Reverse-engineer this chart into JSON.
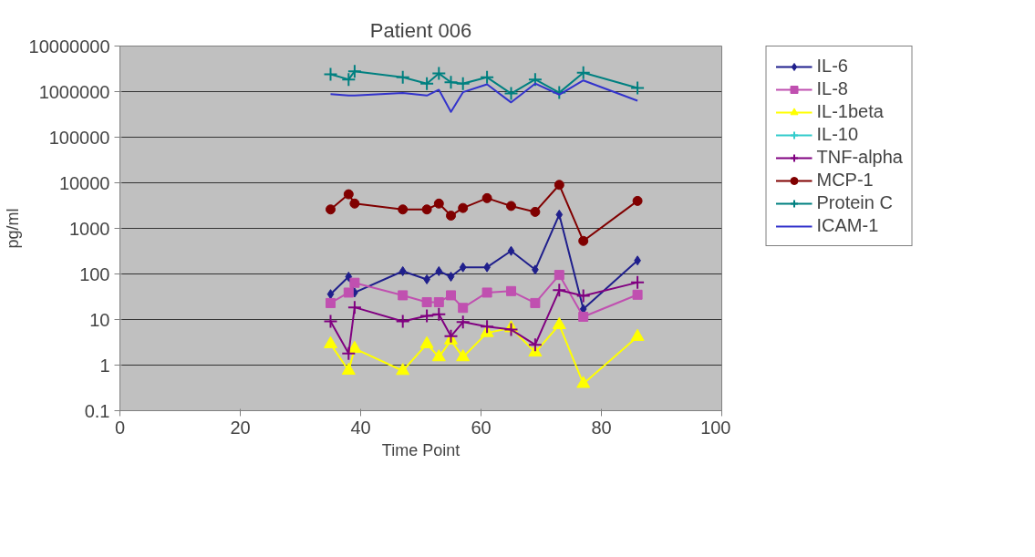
{
  "chart_data": {
    "type": "line",
    "title": "Patient 006",
    "xlabel": "Time Point",
    "ylabel": "pg/ml",
    "x": [
      35,
      38,
      39,
      47,
      51,
      53,
      55,
      57,
      61,
      65,
      69,
      73,
      77,
      86
    ],
    "series": [
      {
        "name": "IL-6",
        "color": "#1f1f8c",
        "marker": "diamond",
        "values": [
          36,
          87,
          39,
          115,
          76,
          115,
          87,
          140,
          140,
          320,
          124,
          2000,
          17,
          197
        ]
      },
      {
        "name": "IL-8",
        "color": "#c050b0",
        "marker": "square",
        "values": [
          23,
          39,
          64,
          34,
          24,
          24,
          34,
          18,
          39,
          42,
          23,
          95,
          11.5,
          35
        ]
      },
      {
        "name": "IL-1beta",
        "color": "#ffff00",
        "marker": "triangle",
        "values": [
          2.9,
          0.76,
          2.3,
          0.75,
          2.9,
          1.5,
          3.5,
          1.5,
          5.1,
          6.5,
          1.9,
          7.6,
          0.39,
          4.2
        ]
      },
      {
        "name": "IL-10",
        "color": "#33cccc",
        "marker": "cross",
        "values": [
          null,
          null,
          null,
          null,
          null,
          null,
          null,
          null,
          null,
          null,
          null,
          null,
          null,
          null
        ]
      },
      {
        "name": "TNF-alpha",
        "color": "#800080",
        "marker": "cross",
        "values": [
          9.1,
          1.8,
          18.5,
          9.1,
          12,
          13,
          4.3,
          8.8,
          7,
          6,
          2.8,
          44,
          33,
          65
        ]
      },
      {
        "name": "MCP-1",
        "color": "#800000",
        "marker": "circle",
        "values": [
          2600,
          5600,
          3500,
          2600,
          2600,
          3500,
          1900,
          2800,
          4600,
          3100,
          2300,
          9000,
          530,
          4000
        ]
      },
      {
        "name": "Protein C",
        "color": "#008080",
        "marker": "cross",
        "values": [
          2400000,
          1850000,
          2800000,
          2060000,
          1500000,
          2500000,
          1600000,
          1500000,
          2060000,
          910000,
          1850000,
          950000,
          2600000,
          1200000
        ]
      },
      {
        "name": "ICAM-1",
        "color": "#3333cc",
        "marker": "none",
        "values": [
          880000,
          820000,
          820000,
          930000,
          820000,
          1100000,
          360000,
          970000,
          1450000,
          580000,
          1500000,
          860000,
          1760000,
          630000
        ]
      }
    ],
    "log": "y",
    "xlim": [
      0,
      100
    ],
    "xticks": [
      0,
      20,
      40,
      60,
      80,
      100
    ],
    "ylim": [
      0.1,
      10000000
    ],
    "yticks": [
      0.1,
      1,
      10,
      100,
      1000,
      10000,
      100000,
      1000000,
      10000000
    ],
    "grid": "y",
    "legend": "right"
  }
}
